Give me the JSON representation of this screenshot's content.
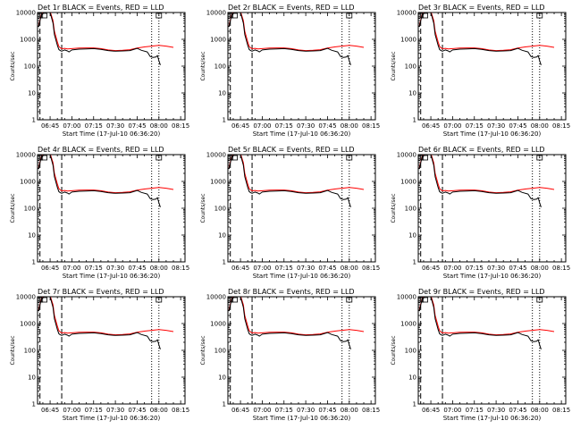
{
  "chart_data": {
    "type": "line",
    "scale": "log",
    "ylim": [
      1,
      10000
    ],
    "ylabel": "Counts/sec",
    "xlabel": "Start Time (17-Jul-10 06:36:20)",
    "xlim": [
      "06:36:20",
      "08:18:00"
    ],
    "x_ticks": [
      "06:45",
      "07:00",
      "07:15",
      "07:30",
      "07:45",
      "08:00",
      "08:15"
    ],
    "y_ticks": [
      "1",
      "10",
      "100",
      "1000",
      "10000"
    ],
    "legend": "title",
    "colors": {
      "events": "#000000",
      "lld": "#ff0000"
    },
    "vlines": [
      {
        "time": "06:38",
        "style": "dashed"
      },
      {
        "time": "06:53",
        "style": "dashed"
      },
      {
        "time": "07:55",
        "style": "dotted"
      },
      {
        "time": "08:00",
        "style": "dotted"
      }
    ],
    "panels": [
      {
        "title": "Det 1r BLACK = Events, RED = LLD"
      },
      {
        "title": "Det 2r BLACK = Events, RED = LLD"
      },
      {
        "title": "Det 3r BLACK = Events, RED = LLD"
      },
      {
        "title": "Det 4r BLACK = Events, RED = LLD"
      },
      {
        "title": "Det 5r BLACK = Events, RED = LLD"
      },
      {
        "title": "Det 6r BLACK = Events, RED = LLD"
      },
      {
        "title": "Det 7r BLACK = Events, RED = LLD"
      },
      {
        "title": "Det 8r BLACK = Events, RED = LLD"
      },
      {
        "title": "Det 9r BLACK = Events, RED = LLD"
      }
    ],
    "series": [
      {
        "name": "Events",
        "color": "#000000",
        "x": [
          "06:37",
          "06:39",
          "06:41",
          "06:43",
          "06:45",
          "06:47",
          "06:48",
          "06:50",
          "06:51",
          "06:52",
          "06:53",
          "06:54",
          "06:55",
          "06:57",
          "06:58",
          "07:00",
          "07:05",
          "07:10",
          "07:15",
          "07:20",
          "07:25",
          "07:30",
          "07:35",
          "07:40",
          "07:45",
          "07:48",
          "07:52",
          "07:54",
          "07:56",
          "07:58",
          "07:59",
          "08:00",
          "08:01"
        ],
        "y": [
          3000,
          8000,
          11000,
          12000,
          10000,
          4000,
          1500,
          600,
          420,
          380,
          360,
          380,
          400,
          370,
          340,
          400,
          430,
          440,
          450,
          420,
          380,
          360,
          370,
          380,
          460,
          390,
          340,
          230,
          210,
          220,
          250,
          160,
          110
        ]
      },
      {
        "name": "LLD",
        "color": "#ff0000",
        "x": [
          "06:37",
          "06:39",
          "06:41",
          "06:43",
          "06:45",
          "06:47",
          "06:48",
          "06:50",
          "06:51",
          "06:52",
          "06:53",
          "06:54",
          "06:55",
          "06:57",
          "07:00",
          "07:05",
          "07:10",
          "07:15",
          "07:20",
          "07:25",
          "07:30",
          "07:35",
          "07:40",
          "07:45",
          "07:50",
          "07:55",
          "08:00",
          "08:05",
          "08:10"
        ],
        "y": [
          3200,
          8500,
          12000,
          13000,
          11000,
          5000,
          2000,
          800,
          550,
          480,
          450,
          450,
          460,
          440,
          450,
          470,
          480,
          480,
          450,
          400,
          380,
          390,
          410,
          470,
          520,
          560,
          600,
          560,
          500
        ]
      }
    ]
  }
}
